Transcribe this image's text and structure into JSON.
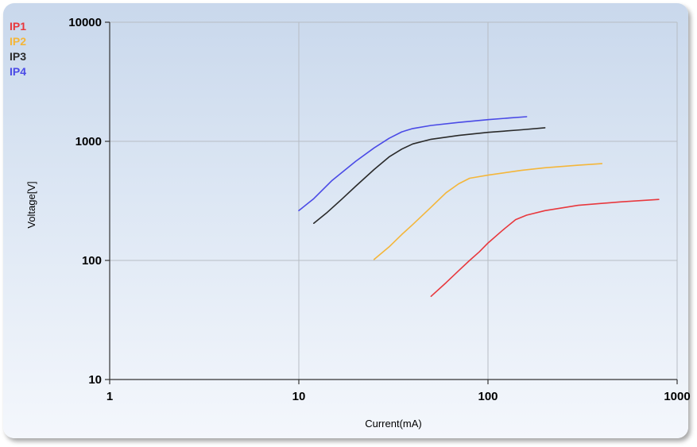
{
  "chart_data": {
    "type": "line",
    "xlabel": "Current(mA)",
    "ylabel": "Voltage[V]",
    "xscale": "log",
    "yscale": "log",
    "xlim": [
      1,
      1000
    ],
    "ylim": [
      10,
      10000
    ],
    "xticks": [
      "1",
      "10",
      "100",
      "1000"
    ],
    "yticks": [
      "10",
      "100",
      "1000",
      "10000"
    ],
    "grid": true,
    "legend_position": "top-left",
    "series": [
      {
        "name": "IP1",
        "color": "#e8383d",
        "x": [
          50,
          60,
          70,
          80,
          90,
          100,
          120,
          140,
          160,
          200,
          300,
          500,
          800
        ],
        "y": [
          50,
          65,
          82,
          100,
          118,
          140,
          180,
          220,
          240,
          262,
          290,
          310,
          325
        ]
      },
      {
        "name": "IP2",
        "color": "#f4b63a",
        "x": [
          25,
          30,
          35,
          40,
          50,
          60,
          70,
          80,
          100,
          150,
          200,
          300,
          400
        ],
        "y": [
          102,
          130,
          165,
          200,
          280,
          370,
          440,
          490,
          520,
          570,
          600,
          630,
          650
        ]
      },
      {
        "name": "IP3",
        "color": "#2a2a2a",
        "x": [
          12,
          14,
          17,
          20,
          25,
          30,
          35,
          40,
          50,
          70,
          100,
          150,
          200
        ],
        "y": [
          205,
          250,
          330,
          420,
          580,
          740,
          860,
          950,
          1040,
          1120,
          1190,
          1250,
          1300
        ]
      },
      {
        "name": "IP4",
        "color": "#4a4ae6",
        "x": [
          10,
          12,
          15,
          20,
          25,
          30,
          35,
          40,
          50,
          70,
          100,
          130,
          160
        ],
        "y": [
          262,
          330,
          470,
          680,
          880,
          1060,
          1200,
          1280,
          1360,
          1440,
          1520,
          1570,
          1610
        ]
      }
    ]
  }
}
